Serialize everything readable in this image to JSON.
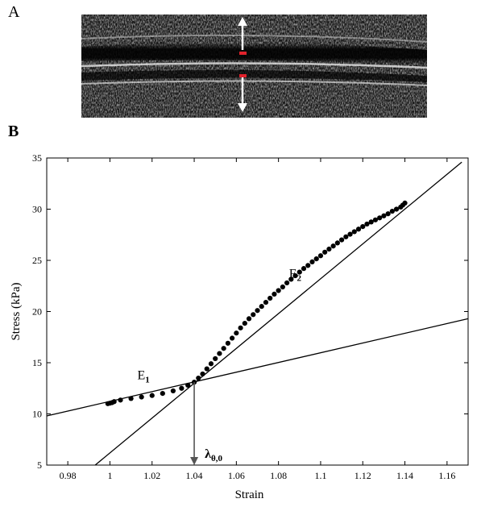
{
  "panel_a": {
    "label": "A",
    "colors": {
      "tissue_dark": "#151515",
      "tissue_light": "#9a9a9a",
      "arrow": "#ffffff",
      "marker": "#e0222c"
    }
  },
  "panel_b": {
    "label": "B"
  },
  "chart_data": {
    "type": "scatter",
    "xlabel": "Strain",
    "ylabel": "Stress (kPa)",
    "xlim": [
      0.97,
      1.17
    ],
    "ylim": [
      5,
      35
    ],
    "xticks": [
      0.98,
      1,
      1.02,
      1.04,
      1.06,
      1.08,
      1.1,
      1.12,
      1.14,
      1.16
    ],
    "xtick_labels": [
      "0.98",
      "1",
      "1.02",
      "1.04",
      "1.06",
      "1.08",
      "1.1",
      "1.12",
      "1.14",
      "1.16"
    ],
    "yticks": [
      5,
      10,
      15,
      20,
      25,
      30,
      35
    ],
    "ytick_labels": [
      "5",
      "10",
      "15",
      "20",
      "25",
      "30",
      "35"
    ],
    "grid": false,
    "series": [
      {
        "x": [
          0.999,
          1.0,
          1.001,
          1.002,
          1.005,
          1.01,
          1.015,
          1.02,
          1.025,
          1.03,
          1.034,
          1.037,
          1.04,
          1.042,
          1.044,
          1.046,
          1.048,
          1.05,
          1.052,
          1.054,
          1.056,
          1.058,
          1.06,
          1.062,
          1.064,
          1.066,
          1.068,
          1.07,
          1.072,
          1.074,
          1.076,
          1.078,
          1.08,
          1.082,
          1.084,
          1.086,
          1.088,
          1.09,
          1.092,
          1.094,
          1.096,
          1.098,
          1.1,
          1.102,
          1.104,
          1.106,
          1.108,
          1.11,
          1.112,
          1.114,
          1.116,
          1.118,
          1.12,
          1.122,
          1.124,
          1.126,
          1.128,
          1.13,
          1.132,
          1.134,
          1.136,
          1.138,
          1.139,
          1.14
        ],
        "y": [
          11.0,
          11.05,
          11.1,
          11.2,
          11.35,
          11.5,
          11.65,
          11.8,
          12.0,
          12.25,
          12.5,
          12.8,
          13.1,
          13.5,
          13.9,
          14.4,
          14.9,
          15.4,
          15.9,
          16.4,
          16.9,
          17.4,
          17.9,
          18.4,
          18.85,
          19.3,
          19.7,
          20.1,
          20.5,
          20.9,
          21.3,
          21.7,
          22.05,
          22.4,
          22.8,
          23.15,
          23.5,
          23.85,
          24.2,
          24.5,
          24.85,
          25.15,
          25.45,
          25.8,
          26.1,
          26.4,
          26.7,
          27.0,
          27.3,
          27.55,
          27.8,
          28.05,
          28.3,
          28.55,
          28.75,
          28.95,
          29.15,
          29.35,
          29.55,
          29.8,
          30.0,
          30.2,
          30.4,
          30.6
        ]
      }
    ],
    "fit_lines": [
      {
        "name": "E1",
        "x": [
          0.97,
          1.17
        ],
        "y": [
          9.8,
          19.3
        ]
      },
      {
        "name": "E2",
        "x": [
          0.993,
          1.167
        ],
        "y": [
          5.0,
          34.6
        ]
      }
    ],
    "annotations": [
      {
        "text": "E",
        "subscript": "1",
        "x": 1.013,
        "y": 13.4
      },
      {
        "text": "E",
        "subscript": "2",
        "x": 1.085,
        "y": 23.3
      },
      {
        "text": "λ",
        "subscript": "θ,0",
        "x": 1.045,
        "y": 5.7
      }
    ],
    "arrow": {
      "x": 1.04,
      "from_y": 13.1,
      "to_y": 5
    }
  }
}
